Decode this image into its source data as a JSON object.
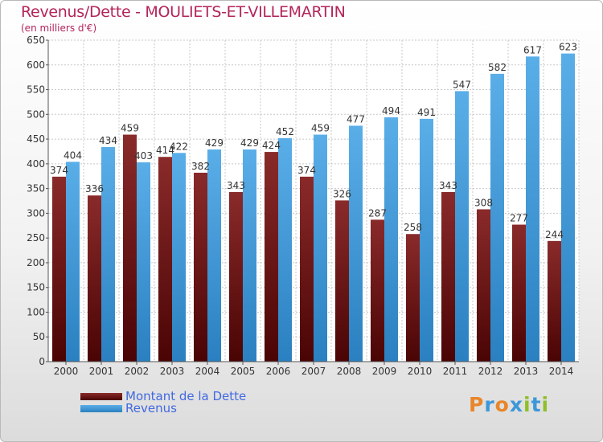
{
  "header": {
    "title": "Revenus/Dette - MOULIETS-ET-VILLEMARTIN",
    "subtitle": "(en milliers d'€)"
  },
  "chart_data": {
    "type": "bar",
    "title": "Revenus/Dette - MOULIETS-ET-VILLEMARTIN",
    "subtitle": "(en milliers d'€)",
    "categories": [
      "2000",
      "2001",
      "2002",
      "2003",
      "2004",
      "2005",
      "2006",
      "2007",
      "2008",
      "2009",
      "2010",
      "2011",
      "2012",
      "2013",
      "2014"
    ],
    "series": [
      {
        "name": "Montant de la Dette",
        "color": "#7a1d1d",
        "values": [
          374,
          336,
          459,
          414,
          382,
          343,
          424,
          374,
          326,
          287,
          258,
          343,
          308,
          277,
          244
        ]
      },
      {
        "name": "Revenus",
        "color": "#3d97d8",
        "values": [
          404,
          434,
          403,
          422,
          429,
          429,
          452,
          459,
          477,
          494,
          491,
          547,
          582,
          617,
          623
        ]
      }
    ],
    "ylim": [
      0,
      650
    ],
    "yticks": [
      0,
      50,
      100,
      150,
      200,
      250,
      300,
      350,
      400,
      450,
      500,
      550,
      600,
      650
    ],
    "grid": true,
    "legend_position": "bottom-left"
  },
  "legend": {
    "items": [
      {
        "label": "Montant de la Dette",
        "color": "#7a1d1d"
      },
      {
        "label": "Revenus",
        "color": "#3d97d8"
      }
    ]
  },
  "logo": {
    "text": "Proxiti",
    "letter_colors": [
      "#e8862a",
      "#3d97d8",
      "#e8862a",
      "#3d97d8",
      "#8fbf2a",
      "#3d97d8",
      "#8fbf2a"
    ]
  }
}
